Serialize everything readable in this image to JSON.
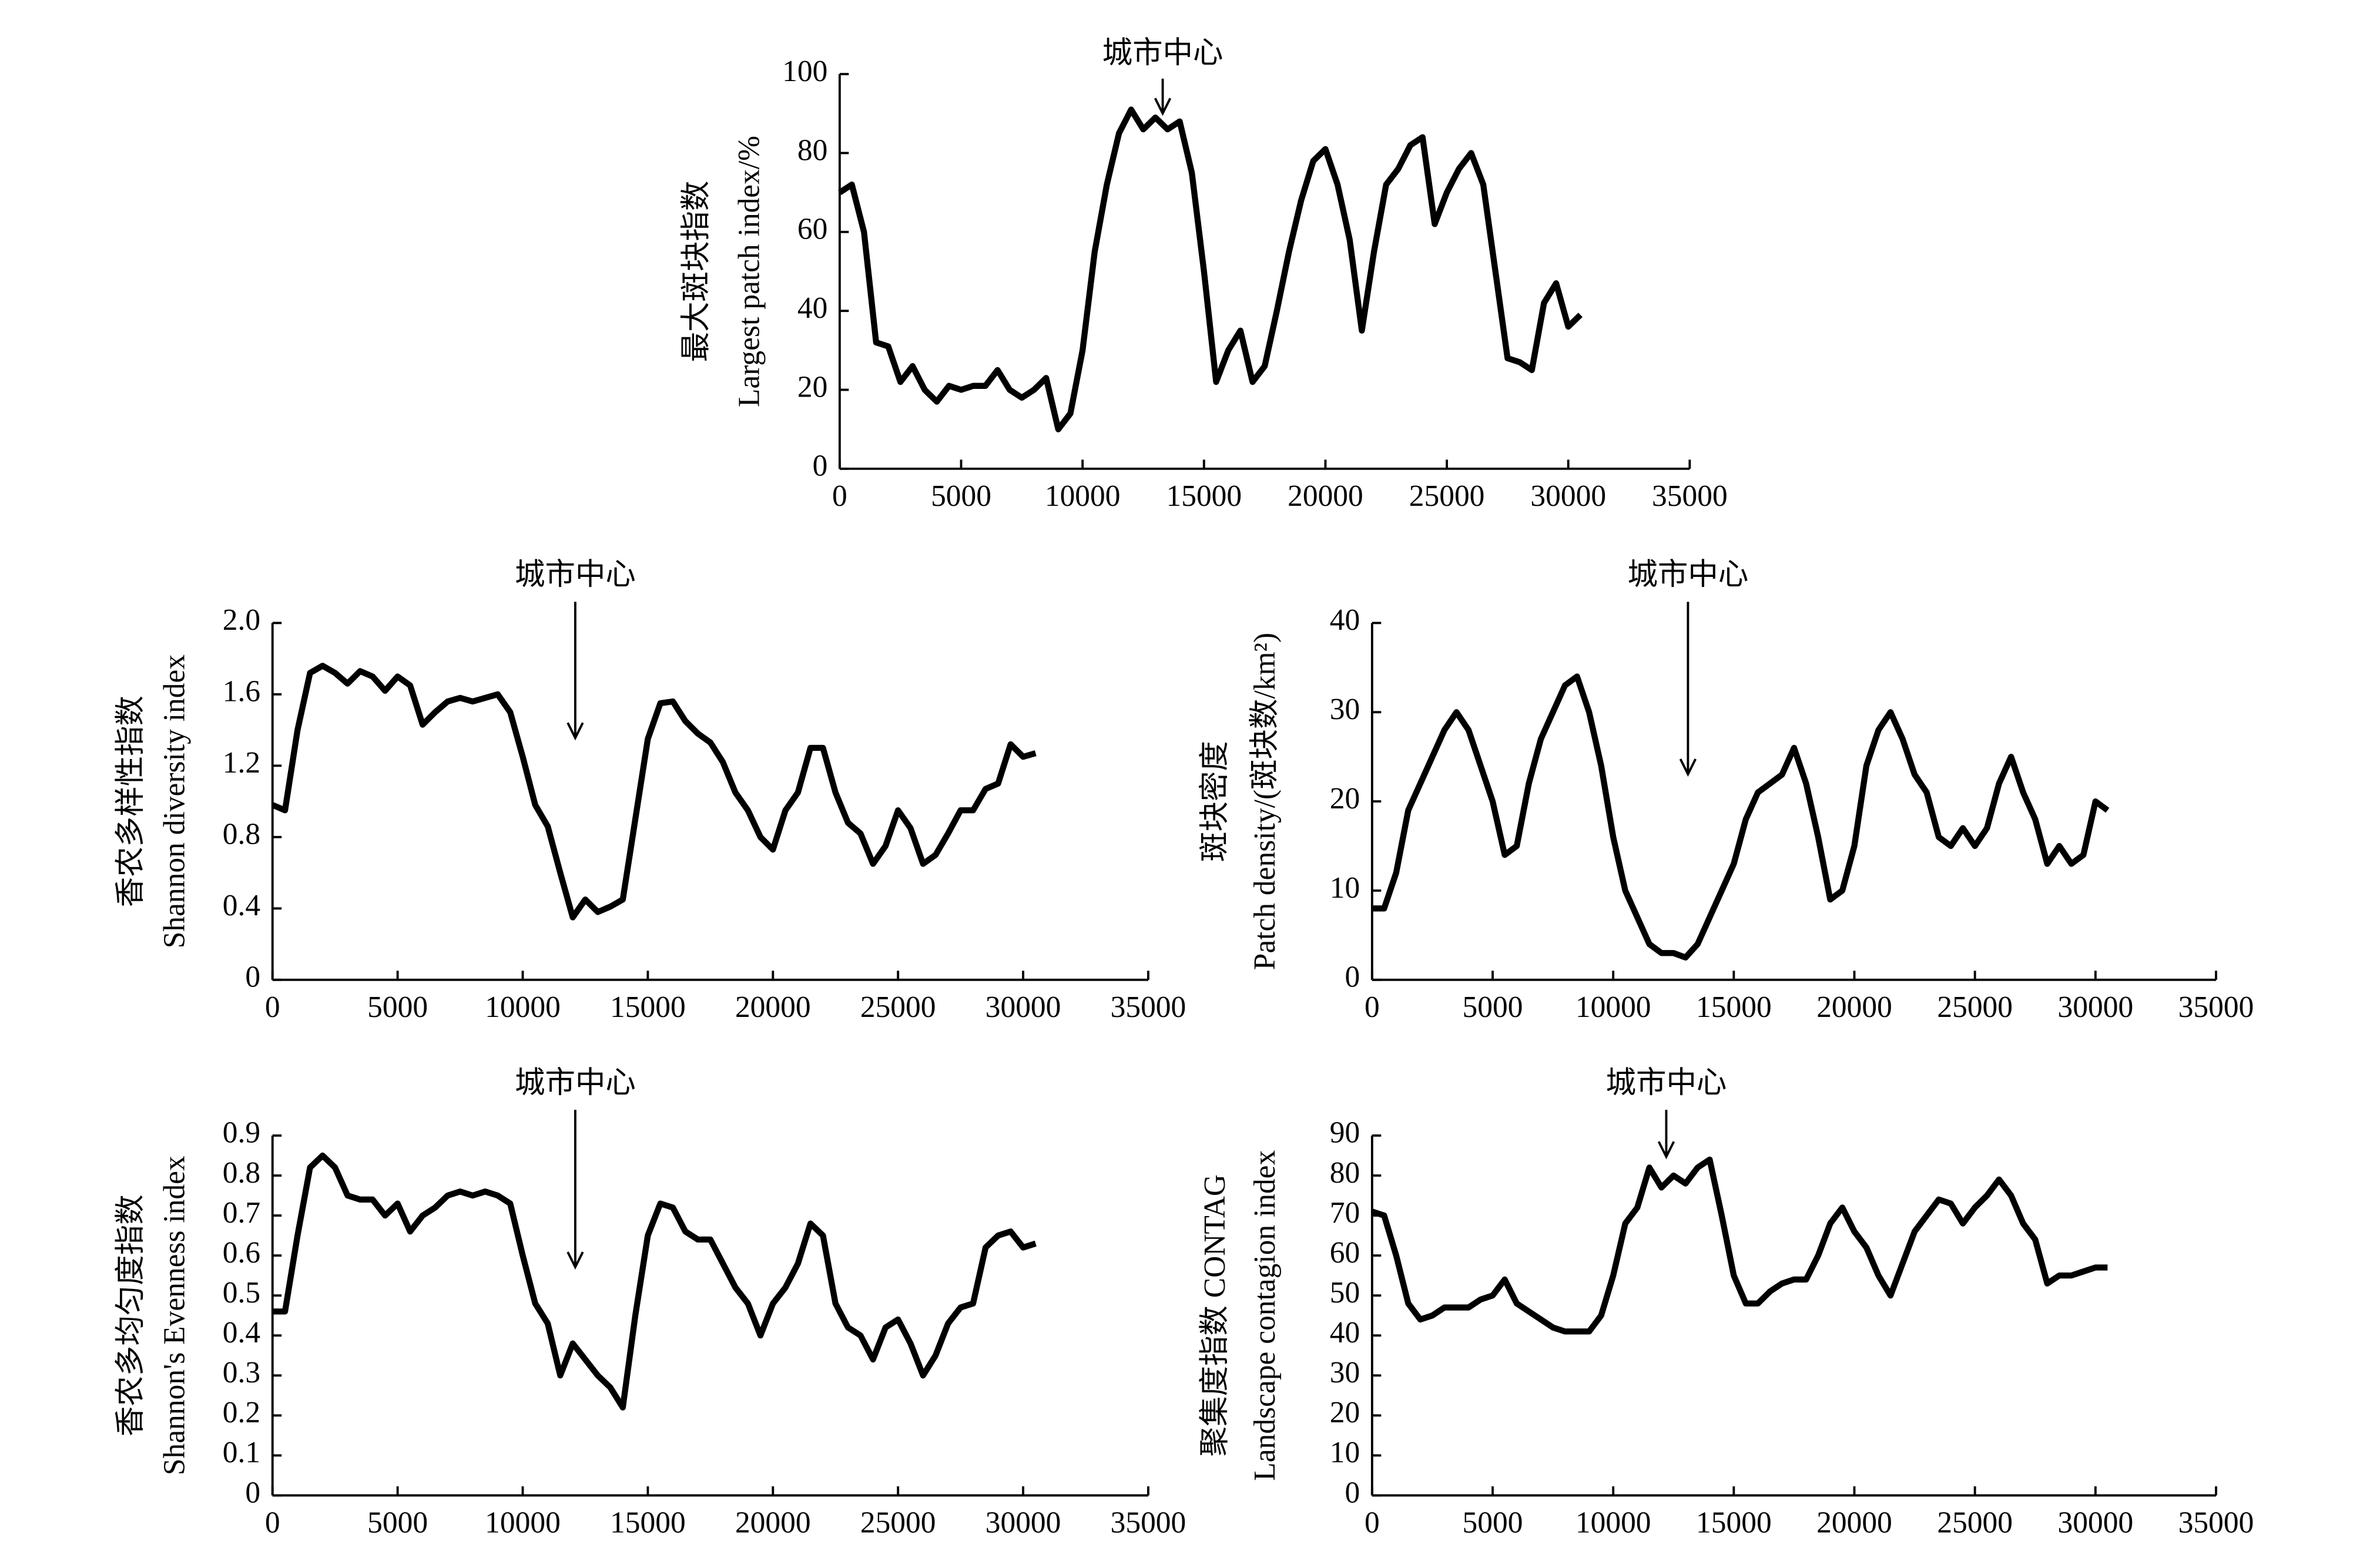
{
  "chart_data": [
    {
      "type": "line",
      "annotation": {
        "text": "城市中心",
        "x": 13300
      },
      "ylabel": [
        "最大斑块指数",
        "Largest patch index/%"
      ],
      "x": [
        0,
        500,
        1000,
        1500,
        2000,
        2500,
        3000,
        3500,
        4000,
        4500,
        5000,
        5500,
        6000,
        6500,
        7000,
        7500,
        8000,
        8500,
        9000,
        9500,
        10000,
        10500,
        11000,
        11500,
        12000,
        12500,
        13000,
        13500,
        14000,
        14500,
        15000,
        15500,
        16000,
        16500,
        17000,
        17500,
        18000,
        18500,
        19000,
        19500,
        20000,
        20500,
        21000,
        21500,
        22000,
        22500,
        23000,
        23500,
        24000,
        24500,
        25000,
        25500,
        26000,
        26500,
        27000,
        27500,
        28000,
        28500,
        29000,
        29500,
        30000,
        30500
      ],
      "series": [
        {
          "color": "#000000",
          "values": [
            70,
            72,
            60,
            32,
            31,
            22,
            26,
            20,
            17,
            21,
            20,
            21,
            21,
            25,
            20,
            18,
            20,
            23,
            10,
            14,
            30,
            55,
            72,
            85,
            91,
            86,
            89,
            86,
            88,
            75,
            50,
            22,
            30,
            35,
            22,
            26,
            40,
            55,
            68,
            78,
            81,
            72,
            58,
            35,
            55,
            72,
            76,
            82,
            84,
            62,
            70,
            76,
            80,
            72,
            50,
            28,
            27,
            25,
            42,
            47,
            36,
            39
          ]
        }
      ],
      "xlim": [
        0,
        35000
      ],
      "xticks": [
        0,
        5000,
        10000,
        15000,
        20000,
        25000,
        30000,
        35000
      ],
      "ylim": [
        0,
        100
      ],
      "yticks": [
        0,
        20,
        40,
        60,
        80,
        100
      ]
    },
    {
      "type": "line",
      "annotation": {
        "text": "城市中心",
        "x": 12100
      },
      "ylabel": [
        "香农多样性指数",
        "Shannon diversity index"
      ],
      "x": [
        0,
        500,
        1000,
        1500,
        2000,
        2500,
        3000,
        3500,
        4000,
        4500,
        5000,
        5500,
        6000,
        6500,
        7000,
        7500,
        8000,
        8500,
        9000,
        9500,
        10000,
        10500,
        11000,
        11500,
        12000,
        12500,
        13000,
        13500,
        14000,
        14500,
        15000,
        15500,
        16000,
        16500,
        17000,
        17500,
        18000,
        18500,
        19000,
        19500,
        20000,
        20500,
        21000,
        21500,
        22000,
        22500,
        23000,
        23500,
        24000,
        24500,
        25000,
        25500,
        26000,
        26500,
        27000,
        27500,
        28000,
        28500,
        29000,
        29500,
        30000,
        30500
      ],
      "series": [
        {
          "color": "#000000",
          "values": [
            0.98,
            0.95,
            1.4,
            1.72,
            1.76,
            1.72,
            1.66,
            1.73,
            1.7,
            1.62,
            1.7,
            1.65,
            1.43,
            1.5,
            1.56,
            1.58,
            1.56,
            1.58,
            1.6,
            1.5,
            1.25,
            0.98,
            0.86,
            0.6,
            0.35,
            0.45,
            0.38,
            0.41,
            0.45,
            0.9,
            1.35,
            1.55,
            1.56,
            1.45,
            1.38,
            1.33,
            1.22,
            1.05,
            0.95,
            0.8,
            0.73,
            0.95,
            1.05,
            1.3,
            1.3,
            1.05,
            0.88,
            0.82,
            0.65,
            0.75,
            0.95,
            0.85,
            0.65,
            0.7,
            0.82,
            0.95,
            0.95,
            1.07,
            1.1,
            1.32,
            1.25,
            1.27
          ]
        }
      ],
      "xlim": [
        0,
        35000
      ],
      "xticks": [
        0,
        5000,
        10000,
        15000,
        20000,
        25000,
        30000,
        35000
      ],
      "ylim": [
        0,
        2
      ],
      "yticks": [
        0,
        0.4,
        0.8,
        1.2,
        1.6,
        {
          "value": 2,
          "label": "2.0"
        }
      ]
    },
    {
      "type": "line",
      "annotation": {
        "text": "城市中心",
        "x": 13100
      },
      "ylabel": [
        "斑块密度",
        "Patch density/(斑块数/km²)"
      ],
      "x": [
        0,
        500,
        1000,
        1500,
        2000,
        2500,
        3000,
        3500,
        4000,
        4500,
        5000,
        5500,
        6000,
        6500,
        7000,
        7500,
        8000,
        8500,
        9000,
        9500,
        10000,
        10500,
        11000,
        11500,
        12000,
        12500,
        13000,
        13500,
        14000,
        14500,
        15000,
        15500,
        16000,
        16500,
        17000,
        17500,
        18000,
        18500,
        19000,
        19500,
        20000,
        20500,
        21000,
        21500,
        22000,
        22500,
        23000,
        23500,
        24000,
        24500,
        25000,
        25500,
        26000,
        26500,
        27000,
        27500,
        28000,
        28500,
        29000,
        29500,
        30000,
        30500
      ],
      "series": [
        {
          "color": "#000000",
          "values": [
            8,
            8,
            12,
            19,
            22,
            25,
            28,
            30,
            28,
            24,
            20,
            14,
            15,
            22,
            27,
            30,
            33,
            34,
            30,
            24,
            16,
            10,
            7,
            4,
            3,
            3,
            2.5,
            4,
            7,
            10,
            13,
            18,
            21,
            22,
            23,
            26,
            22,
            16,
            9,
            10,
            15,
            24,
            28,
            30,
            27,
            23,
            21,
            16,
            15,
            17,
            15,
            17,
            22,
            25,
            21,
            18,
            13,
            15,
            13,
            14,
            20,
            19
          ]
        }
      ],
      "xlim": [
        0,
        35000
      ],
      "xticks": [
        0,
        5000,
        10000,
        15000,
        20000,
        25000,
        30000,
        35000
      ],
      "ylim": [
        0,
        40
      ],
      "yticks": [
        0,
        10,
        20,
        30,
        40
      ]
    },
    {
      "type": "line",
      "annotation": {
        "text": "城市中心",
        "x": 12100
      },
      "ylabel": [
        "香农多均匀度指数",
        "Shannon's Evenness index"
      ],
      "x": [
        0,
        500,
        1000,
        1500,
        2000,
        2500,
        3000,
        3500,
        4000,
        4500,
        5000,
        5500,
        6000,
        6500,
        7000,
        7500,
        8000,
        8500,
        9000,
        9500,
        10000,
        10500,
        11000,
        11500,
        12000,
        12500,
        13000,
        13500,
        14000,
        14500,
        15000,
        15500,
        16000,
        16500,
        17000,
        17500,
        18000,
        18500,
        19000,
        19500,
        20000,
        20500,
        21000,
        21500,
        22000,
        22500,
        23000,
        23500,
        24000,
        24500,
        25000,
        25500,
        26000,
        26500,
        27000,
        27500,
        28000,
        28500,
        29000,
        29500,
        30000,
        30500
      ],
      "series": [
        {
          "color": "#000000",
          "values": [
            0.46,
            0.46,
            0.65,
            0.82,
            0.85,
            0.82,
            0.75,
            0.74,
            0.74,
            0.7,
            0.73,
            0.66,
            0.7,
            0.72,
            0.75,
            0.76,
            0.75,
            0.76,
            0.75,
            0.73,
            0.6,
            0.48,
            0.43,
            0.3,
            0.38,
            0.34,
            0.3,
            0.27,
            0.22,
            0.45,
            0.65,
            0.73,
            0.72,
            0.66,
            0.64,
            0.64,
            0.58,
            0.52,
            0.48,
            0.4,
            0.48,
            0.52,
            0.58,
            0.68,
            0.65,
            0.48,
            0.42,
            0.4,
            0.34,
            0.42,
            0.44,
            0.38,
            0.3,
            0.35,
            0.43,
            0.47,
            0.48,
            0.62,
            0.65,
            0.66,
            0.62,
            0.63
          ]
        }
      ],
      "xlim": [
        0,
        35000
      ],
      "xticks": [
        0,
        5000,
        10000,
        15000,
        20000,
        25000,
        30000,
        35000
      ],
      "ylim": [
        0,
        0.9
      ],
      "yticks": [
        0,
        0.1,
        0.2,
        0.3,
        0.4,
        0.5,
        0.6,
        0.7,
        0.8,
        0.9
      ]
    },
    {
      "type": "line",
      "annotation": {
        "text": "城市中心",
        "x": 12200
      },
      "ylabel": [
        "聚集度指数 CONTAG",
        "Landscape contagion index"
      ],
      "x": [
        0,
        500,
        1000,
        1500,
        2000,
        2500,
        3000,
        3500,
        4000,
        4500,
        5000,
        5500,
        6000,
        6500,
        7000,
        7500,
        8000,
        8500,
        9000,
        9500,
        10000,
        10500,
        11000,
        11500,
        12000,
        12500,
        13000,
        13500,
        14000,
        14500,
        15000,
        15500,
        16000,
        16500,
        17000,
        17500,
        18000,
        18500,
        19000,
        19500,
        20000,
        20500,
        21000,
        21500,
        22000,
        22500,
        23000,
        23500,
        24000,
        24500,
        25000,
        25500,
        26000,
        26500,
        27000,
        27500,
        28000,
        28500,
        29000,
        29500,
        30000,
        30500
      ],
      "series": [
        {
          "color": "#000000",
          "values": [
            71,
            70,
            60,
            48,
            44,
            45,
            47,
            47,
            47,
            49,
            50,
            54,
            48,
            46,
            44,
            42,
            41,
            41,
            41,
            45,
            55,
            68,
            72,
            82,
            77,
            80,
            78,
            82,
            84,
            70,
            55,
            48,
            48,
            51,
            53,
            54,
            54,
            60,
            68,
            72,
            66,
            62,
            55,
            50,
            58,
            66,
            70,
            74,
            73,
            68,
            72,
            75,
            79,
            75,
            68,
            64,
            53,
            55,
            55,
            56,
            57,
            57
          ]
        }
      ],
      "xlim": [
        0,
        35000
      ],
      "xticks": [
        0,
        5000,
        10000,
        15000,
        20000,
        25000,
        30000,
        35000
      ],
      "ylim": [
        0,
        90
      ],
      "yticks": [
        0,
        10,
        20,
        30,
        40,
        50,
        60,
        70,
        80,
        90
      ]
    }
  ]
}
